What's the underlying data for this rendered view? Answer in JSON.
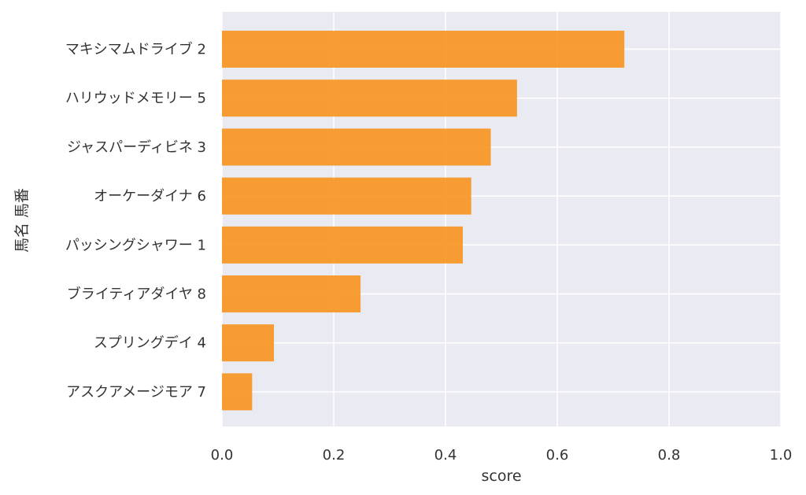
{
  "chart_data": {
    "type": "bar",
    "orientation": "horizontal",
    "categories": [
      "マキシマムドライブ 2",
      "ハリウッドメモリー 5",
      "ジャスパーディビネ 3",
      "オーケーダイナ 6",
      "パッシングシャワー 1",
      "ブライティアダイヤ 8",
      "スプリングデイ 4",
      "アスクアメージモア 7"
    ],
    "values": [
      0.72,
      0.528,
      0.481,
      0.446,
      0.431,
      0.248,
      0.093,
      0.054
    ],
    "xlabel": "score",
    "ylabel": "馬名 馬番",
    "xlim": [
      0.0,
      1.0
    ],
    "xticks": [
      "0.0",
      "0.2",
      "0.4",
      "0.6",
      "0.8",
      "1.0"
    ],
    "grid": true,
    "bar_color": "#f7931e",
    "background_color": "#eaeaf2",
    "grid_color": "#ffffff"
  }
}
